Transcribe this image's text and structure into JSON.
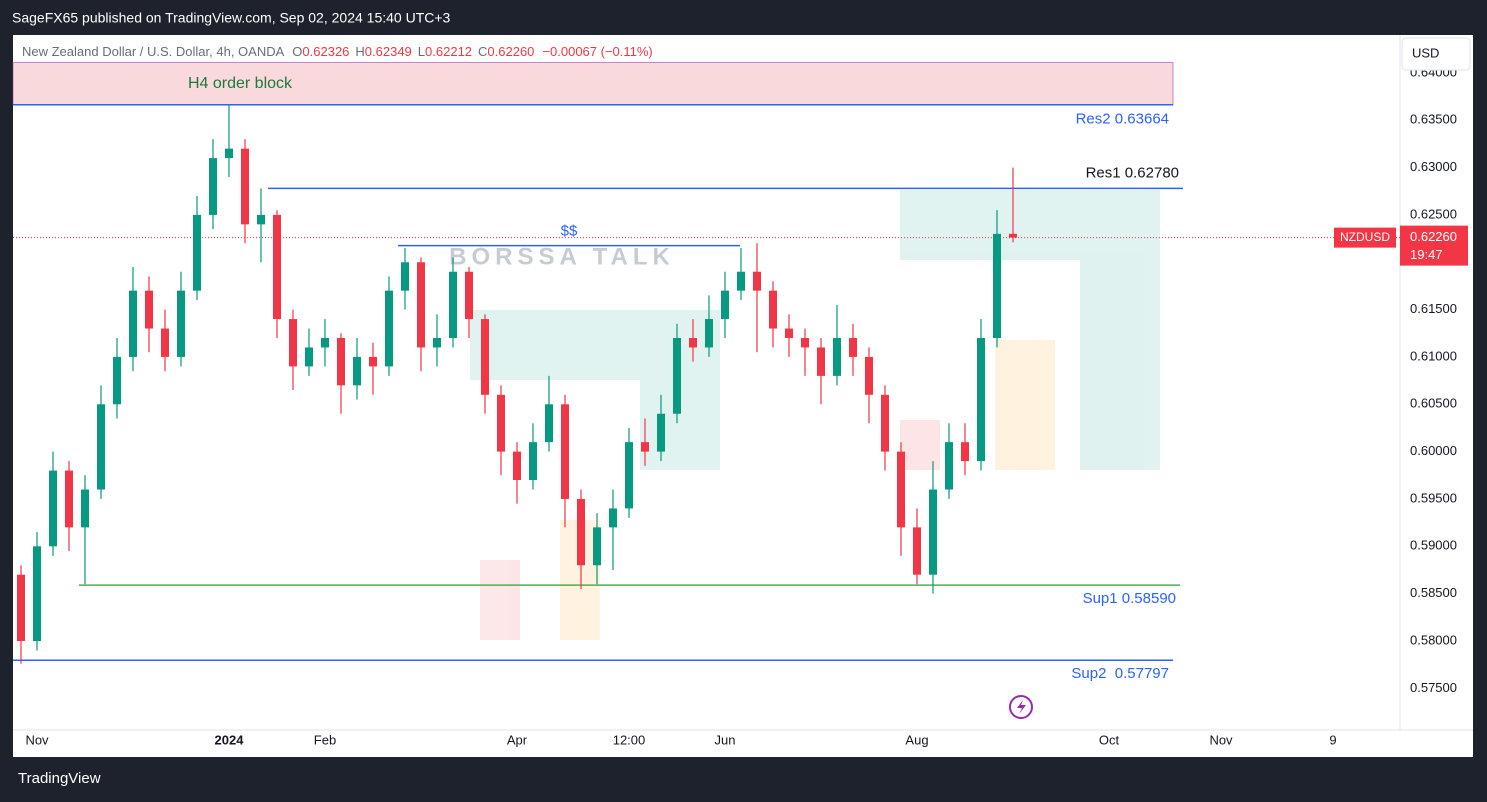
{
  "header": {
    "text": "SageFX65 published on TradingView.com, Sep 02, 2024 15:40 UTC+3"
  },
  "footer": {
    "brand": "TradingView"
  },
  "chart_data": {
    "type": "candlestick",
    "title": "New Zealand Dollar / U.S. Dollar, 4h, OANDA",
    "legend": [
      {
        "key": "O",
        "value": "0.62326"
      },
      {
        "key": "H",
        "value": "0.62349"
      },
      {
        "key": "L",
        "value": "0.62212"
      },
      {
        "key": "C",
        "value": "0.62260"
      }
    ],
    "change": "−0.00067 (−0.11%)",
    "currency": "USD",
    "symbol": "NZDUSD",
    "last_price": {
      "value": 0.6226,
      "label": "0.62260"
    },
    "countdown": "19:47",
    "categories": [
      null,
      "Nov",
      null,
      null,
      null,
      null,
      null,
      null,
      null,
      null,
      null,
      null,
      null,
      "2024",
      null,
      null,
      null,
      null,
      null,
      "Feb",
      null,
      null,
      null,
      null,
      null,
      null,
      null,
      null,
      null,
      null,
      null,
      "Apr",
      null,
      null,
      null,
      null,
      null,
      null,
      "12:00",
      null,
      null,
      null,
      null,
      null,
      "Jun",
      null,
      null,
      null,
      null,
      null,
      null,
      null,
      null,
      null,
      null,
      null,
      "Aug",
      null,
      null,
      null,
      null,
      null,
      null,
      null,
      null,
      null,
      null,
      null,
      "Oct",
      null,
      null,
      null,
      null,
      null,
      null,
      "Nov",
      null,
      null,
      null,
      null,
      null,
      null,
      "9",
      null,
      null,
      null
    ],
    "open": [
      0.587,
      0.58,
      0.59,
      0.598,
      0.592,
      0.596,
      0.605,
      0.61,
      0.617,
      0.613,
      0.61,
      0.617,
      0.625,
      0.631,
      0.632,
      0.624,
      0.625,
      0.614,
      0.609,
      0.611,
      0.612,
      0.607,
      0.61,
      0.609,
      0.617,
      0.62,
      0.611,
      0.612,
      0.619,
      0.614,
      0.606,
      0.6,
      0.597,
      0.601,
      0.605,
      0.595,
      0.588,
      0.592,
      0.594,
      0.601,
      0.6,
      0.604,
      0.612,
      0.611,
      0.614,
      0.617,
      0.619,
      0.617,
      0.613,
      0.612,
      0.611,
      0.608,
      0.612,
      0.61,
      0.606,
      0.6,
      0.592,
      0.587,
      0.596,
      0.601,
      0.599,
      0.612,
      0.623,
      null,
      null,
      null,
      null,
      null,
      null,
      null,
      null,
      null,
      null,
      null,
      null,
      null,
      null,
      null,
      null,
      null,
      null,
      null,
      null,
      null,
      null,
      null
    ],
    "high": [
      0.588,
      0.5915,
      0.6,
      0.599,
      0.5975,
      0.607,
      0.612,
      0.6195,
      0.6185,
      0.615,
      0.619,
      0.627,
      0.633,
      0.6366,
      0.633,
      0.6278,
      0.6255,
      0.615,
      0.613,
      0.614,
      0.6125,
      0.612,
      0.6115,
      0.6185,
      0.6215,
      0.6205,
      0.6145,
      0.6205,
      0.6195,
      0.6145,
      0.607,
      0.601,
      0.603,
      0.608,
      0.606,
      0.596,
      0.5935,
      0.596,
      0.6025,
      0.6035,
      0.606,
      0.6135,
      0.614,
      0.6165,
      0.619,
      0.6215,
      0.622,
      0.618,
      0.6145,
      0.613,
      0.612,
      0.6155,
      0.6135,
      0.611,
      0.607,
      0.601,
      0.594,
      0.599,
      0.603,
      0.603,
      0.614,
      0.6255,
      0.63,
      null,
      null,
      null,
      null,
      null,
      null,
      null,
      null,
      null,
      null,
      null,
      null,
      null,
      null,
      null,
      null,
      null,
      null,
      null,
      null,
      null,
      null,
      null
    ],
    "low": [
      0.5776,
      0.579,
      0.589,
      0.5895,
      0.586,
      0.595,
      0.6035,
      0.6085,
      0.6105,
      0.6085,
      0.609,
      0.616,
      0.6235,
      0.629,
      0.622,
      0.62,
      0.612,
      0.6065,
      0.608,
      0.609,
      0.604,
      0.6055,
      0.606,
      0.608,
      0.615,
      0.6085,
      0.609,
      0.611,
      0.612,
      0.604,
      0.5975,
      0.5945,
      0.596,
      0.6,
      0.592,
      0.5855,
      0.586,
      0.5875,
      0.593,
      0.5985,
      0.599,
      0.603,
      0.6095,
      0.61,
      0.612,
      0.616,
      0.6105,
      0.611,
      0.61,
      0.608,
      0.605,
      0.607,
      0.608,
      0.603,
      0.598,
      0.589,
      0.586,
      0.585,
      0.595,
      0.5975,
      0.598,
      0.611,
      0.6221,
      null,
      null,
      null,
      null,
      null,
      null,
      null,
      null,
      null,
      null,
      null,
      null,
      null,
      null,
      null,
      null,
      null,
      null,
      null,
      null,
      null,
      null,
      null
    ],
    "close": [
      0.58,
      0.59,
      0.598,
      0.592,
      0.596,
      0.605,
      0.61,
      0.617,
      0.613,
      0.61,
      0.617,
      0.625,
      0.631,
      0.632,
      0.624,
      0.625,
      0.614,
      0.609,
      0.611,
      0.612,
      0.607,
      0.61,
      0.609,
      0.617,
      0.62,
      0.611,
      0.612,
      0.619,
      0.614,
      0.606,
      0.6,
      0.597,
      0.601,
      0.605,
      0.595,
      0.588,
      0.592,
      0.594,
      0.601,
      0.6,
      0.604,
      0.612,
      0.611,
      0.614,
      0.617,
      0.619,
      0.617,
      0.613,
      0.612,
      0.611,
      0.608,
      0.612,
      0.61,
      0.606,
      0.6,
      0.592,
      0.587,
      0.596,
      0.601,
      0.599,
      0.612,
      0.623,
      0.6226,
      null,
      null,
      null,
      null,
      null,
      null,
      null,
      null,
      null,
      null,
      null,
      null,
      null,
      null,
      null,
      null,
      null,
      null,
      null,
      null,
      null,
      null,
      null
    ],
    "up_color": "#089981",
    "down_color": "#f23645",
    "ylim": [
      0.5706,
      0.644
    ],
    "yticks": [
      {
        "value": 0.575,
        "label": "0.57500"
      },
      {
        "value": 0.58,
        "label": "0.58000"
      },
      {
        "value": 0.585,
        "label": "0.58500"
      },
      {
        "value": 0.59,
        "label": "0.59000"
      },
      {
        "value": 0.595,
        "label": "0.59500"
      },
      {
        "value": 0.6,
        "label": "0.60000"
      },
      {
        "value": 0.605,
        "label": "0.60500"
      },
      {
        "value": 0.61,
        "label": "0.61000"
      },
      {
        "value": 0.615,
        "label": "0.61500"
      },
      {
        "value": 0.62,
        "label": "0.62000"
      },
      {
        "value": 0.625,
        "label": "0.62500"
      },
      {
        "value": 0.63,
        "label": "0.63000"
      },
      {
        "value": 0.635,
        "label": "0.63500"
      },
      {
        "value": 0.64,
        "label": "0.64000"
      }
    ],
    "grid": false,
    "levels": [
      {
        "label": "Res2 0.63664",
        "value": 0.63664,
        "color": "#2962ff",
        "text_color": "#2962ff"
      },
      {
        "label": "Res1 0.62780",
        "value": 0.6278,
        "color": "#2962ff",
        "text_color": "#131722"
      },
      {
        "label": "Sup1 0.58590",
        "value": 0.5859,
        "color": "#4caf50",
        "text_color": "#2962ff"
      },
      {
        "label": "Sup2  0.57797",
        "value": 0.57797,
        "color": "#2962ff",
        "text_color": "#2962ff"
      }
    ],
    "zone": {
      "label": "H4 order block",
      "ylim": [
        0.63664,
        0.64109
      ],
      "color": "#f7c9cd"
    },
    "liquidity": {
      "label": "$$",
      "value": 0.62175
    },
    "watermark": "BORSSA TALK"
  }
}
